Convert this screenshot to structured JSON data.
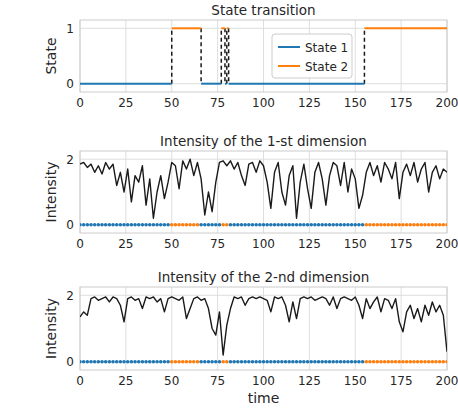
{
  "chart_data": [
    {
      "type": "step",
      "title": "State transition",
      "y_label": "State",
      "xlim": [
        0,
        200
      ],
      "ylim": [
        -0.15,
        1.15
      ],
      "xticks": [
        0,
        25,
        50,
        75,
        100,
        125,
        150,
        175,
        200
      ],
      "yticks": [
        0,
        1
      ],
      "grid": true,
      "legend": "upper right",
      "series": [
        {
          "name": "State 1",
          "color": "#1f77b4",
          "value": 0
        },
        {
          "name": "State 2",
          "color": "#ff7f0e",
          "value": 1
        }
      ],
      "segments": [
        {
          "start": 0,
          "end": 50,
          "state": 0
        },
        {
          "start": 50,
          "end": 66,
          "state": 1
        },
        {
          "start": 66,
          "end": 77,
          "state": 0
        },
        {
          "start": 77,
          "end": 79,
          "state": 1
        },
        {
          "start": 79,
          "end": 80,
          "state": 0
        },
        {
          "start": 80,
          "end": 81,
          "state": 1
        },
        {
          "start": 81,
          "end": 155,
          "state": 0
        },
        {
          "start": 155,
          "end": 200,
          "state": 1
        }
      ]
    },
    {
      "type": "line",
      "title": "Intensity of the 1-st dimension",
      "y_label": "Intensity",
      "xlim": [
        0,
        200
      ],
      "ylim": [
        -0.25,
        2.25
      ],
      "xticks": [
        0,
        25,
        50,
        75,
        100,
        125,
        150,
        175,
        200
      ],
      "yticks": [
        0,
        2
      ],
      "grid": true,
      "x": [
        0,
        2,
        4,
        6,
        8,
        10,
        12,
        14,
        16,
        18,
        20,
        22,
        24,
        26,
        28,
        30,
        32,
        34,
        36,
        38,
        40,
        42,
        44,
        46,
        48,
        50,
        52,
        54,
        56,
        58,
        60,
        62,
        64,
        66,
        68,
        70,
        72,
        74,
        76,
        78,
        80,
        82,
        84,
        86,
        88,
        90,
        92,
        94,
        96,
        98,
        100,
        102,
        104,
        106,
        108,
        110,
        112,
        114,
        116,
        118,
        120,
        122,
        124,
        126,
        128,
        130,
        132,
        134,
        136,
        138,
        140,
        142,
        144,
        146,
        148,
        150,
        152,
        154,
        156,
        158,
        160,
        162,
        164,
        166,
        168,
        170,
        172,
        174,
        176,
        178,
        180,
        182,
        184,
        186,
        188,
        190,
        192,
        194,
        196,
        198,
        200
      ],
      "series": [
        {
          "color": "#1a1a1a",
          "type": "line",
          "values": [
            1.85,
            1.9,
            1.75,
            1.85,
            1.6,
            1.8,
            1.55,
            1.9,
            1.7,
            1.85,
            1.2,
            1.6,
            1.0,
            1.7,
            0.7,
            1.5,
            1.3,
            1.8,
            0.6,
            1.4,
            0.2,
            1.0,
            1.5,
            0.8,
            1.3,
            1.9,
            1.8,
            1.1,
            1.95,
            1.7,
            2.0,
            1.5,
            1.9,
            1.4,
            0.3,
            1.0,
            0.4,
            1.3,
            1.9,
            1.95,
            1.8,
            1.95,
            1.7,
            1.9,
            1.5,
            1.2,
            1.85,
            1.9,
            1.6,
            1.95,
            1.8,
            1.3,
            0.5,
            1.6,
            1.9,
            1.0,
            0.6,
            1.5,
            1.8,
            0.2,
            1.3,
            1.85,
            1.1,
            0.5,
            1.6,
            1.9,
            1.4,
            0.6,
            1.5,
            1.9,
            1.8,
            1.2,
            1.9,
            1.0,
            1.7,
            1.4,
            0.5,
            0.9,
            1.6,
            1.9,
            1.5,
            1.8,
            1.3,
            1.9,
            1.7,
            1.4,
            1.9,
            0.8,
            1.6,
            1.85,
            1.5,
            1.9,
            1.3,
            1.7,
            1.9,
            1.0,
            1.6,
            1.8,
            1.4,
            1.7,
            1.6
          ]
        },
        {
          "color": "#1f77b4",
          "type": "scatter",
          "values": [
            0,
            0,
            0,
            0,
            0,
            0,
            0,
            0,
            0,
            0,
            0,
            0,
            0,
            0,
            0,
            0,
            0,
            0,
            0,
            0,
            0,
            0,
            0,
            0,
            0,
            null,
            null,
            null,
            null,
            null,
            null,
            null,
            null,
            0,
            0,
            0,
            0,
            0,
            0,
            null,
            null,
            0,
            0,
            0,
            0,
            0,
            0,
            0,
            0,
            0,
            0,
            0,
            0,
            0,
            0,
            0,
            0,
            0,
            0,
            0,
            0,
            0,
            0,
            0,
            0,
            0,
            0,
            0,
            0,
            0,
            0,
            0,
            0,
            0,
            0,
            0,
            0,
            0,
            null,
            null,
            null,
            null,
            null,
            null,
            null,
            null,
            null,
            null,
            null,
            null,
            null,
            null,
            null,
            null,
            null,
            null,
            null,
            null,
            null,
            null,
            null
          ]
        },
        {
          "color": "#ff7f0e",
          "type": "scatter",
          "values": [
            null,
            null,
            null,
            null,
            null,
            null,
            null,
            null,
            null,
            null,
            null,
            null,
            null,
            null,
            null,
            null,
            null,
            null,
            null,
            null,
            null,
            null,
            null,
            null,
            null,
            0,
            0,
            0,
            0,
            0,
            0,
            0,
            0,
            null,
            null,
            null,
            null,
            null,
            null,
            0,
            0,
            null,
            null,
            null,
            null,
            null,
            null,
            null,
            null,
            null,
            null,
            null,
            null,
            null,
            null,
            null,
            null,
            null,
            null,
            null,
            null,
            null,
            null,
            null,
            null,
            null,
            null,
            null,
            null,
            null,
            null,
            null,
            null,
            null,
            null,
            null,
            null,
            null,
            0,
            0,
            0,
            0,
            0,
            0,
            0,
            0,
            0,
            0,
            0,
            0,
            0,
            0,
            0,
            0,
            0,
            0,
            0,
            0,
            0,
            0,
            0
          ]
        }
      ]
    },
    {
      "type": "line",
      "title": "Intensity of the 2-nd dimension",
      "y_label": "Intensity",
      "x_label": "time",
      "xlim": [
        0,
        200
      ],
      "ylim": [
        -0.25,
        2.25
      ],
      "xticks": [
        0,
        25,
        50,
        75,
        100,
        125,
        150,
        175,
        200
      ],
      "yticks": [
        0,
        2
      ],
      "grid": true,
      "x": [
        0,
        2,
        4,
        6,
        8,
        10,
        12,
        14,
        16,
        18,
        20,
        22,
        24,
        26,
        28,
        30,
        32,
        34,
        36,
        38,
        40,
        42,
        44,
        46,
        48,
        50,
        52,
        54,
        56,
        58,
        60,
        62,
        64,
        66,
        68,
        70,
        72,
        74,
        76,
        78,
        80,
        82,
        84,
        86,
        88,
        90,
        92,
        94,
        96,
        98,
        100,
        102,
        104,
        106,
        108,
        110,
        112,
        114,
        116,
        118,
        120,
        122,
        124,
        126,
        128,
        130,
        132,
        134,
        136,
        138,
        140,
        142,
        144,
        146,
        148,
        150,
        152,
        154,
        156,
        158,
        160,
        162,
        164,
        166,
        168,
        170,
        172,
        174,
        176,
        178,
        180,
        182,
        184,
        186,
        188,
        190,
        192,
        194,
        196,
        198,
        200
      ],
      "series": [
        {
          "color": "#1a1a1a",
          "type": "line",
          "values": [
            1.35,
            1.5,
            1.4,
            1.9,
            1.95,
            1.85,
            1.9,
            1.95,
            1.8,
            1.95,
            1.9,
            1.7,
            1.2,
            1.9,
            1.95,
            1.85,
            1.9,
            1.6,
            1.95,
            1.9,
            1.95,
            1.8,
            1.9,
            1.5,
            1.9,
            1.95,
            1.9,
            1.85,
            1.95,
            1.3,
            1.6,
            1.9,
            1.95,
            1.85,
            1.9,
            1.6,
            1.0,
            0.8,
            1.5,
            0.2,
            1.1,
            1.6,
            1.95,
            1.9,
            1.95,
            1.7,
            1.9,
            1.95,
            1.9,
            1.95,
            1.9,
            1.85,
            1.5,
            1.95,
            1.9,
            1.95,
            1.7,
            1.2,
            1.8,
            1.3,
            1.9,
            1.95,
            1.9,
            1.95,
            1.85,
            1.9,
            1.95,
            1.9,
            1.7,
            1.95,
            1.6,
            1.9,
            1.95,
            1.9,
            1.85,
            1.95,
            1.7,
            1.3,
            1.9,
            1.6,
            1.8,
            1.95,
            1.5,
            1.9,
            1.85,
            1.6,
            1.9,
            1.2,
            0.9,
            1.5,
            1.7,
            1.3,
            1.6,
            1.2,
            1.7,
            1.4,
            1.8,
            1.5,
            1.7,
            1.4,
            0.3
          ]
        },
        {
          "color": "#1f77b4",
          "type": "scatter",
          "values": [
            0,
            0,
            0,
            0,
            0,
            0,
            0,
            0,
            0,
            0,
            0,
            0,
            0,
            0,
            0,
            0,
            0,
            0,
            0,
            0,
            0,
            0,
            0,
            0,
            0,
            null,
            null,
            null,
            null,
            null,
            null,
            null,
            null,
            0,
            0,
            0,
            0,
            0,
            0,
            null,
            null,
            0,
            0,
            0,
            0,
            0,
            0,
            0,
            0,
            0,
            0,
            0,
            0,
            0,
            0,
            0,
            0,
            0,
            0,
            0,
            0,
            0,
            0,
            0,
            0,
            0,
            0,
            0,
            0,
            0,
            0,
            0,
            0,
            0,
            0,
            0,
            0,
            0,
            null,
            null,
            null,
            null,
            null,
            null,
            null,
            null,
            null,
            null,
            null,
            null,
            null,
            null,
            null,
            null,
            null,
            null,
            null,
            null,
            null,
            null,
            null
          ]
        },
        {
          "color": "#ff7f0e",
          "type": "scatter",
          "values": [
            null,
            null,
            null,
            null,
            null,
            null,
            null,
            null,
            null,
            null,
            null,
            null,
            null,
            null,
            null,
            null,
            null,
            null,
            null,
            null,
            null,
            null,
            null,
            null,
            null,
            0,
            0,
            0,
            0,
            0,
            0,
            0,
            0,
            null,
            null,
            null,
            null,
            null,
            null,
            0,
            0,
            null,
            null,
            null,
            null,
            null,
            null,
            null,
            null,
            null,
            null,
            null,
            null,
            null,
            null,
            null,
            null,
            null,
            null,
            null,
            null,
            null,
            null,
            null,
            null,
            null,
            null,
            null,
            null,
            null,
            null,
            null,
            null,
            null,
            null,
            null,
            null,
            null,
            0,
            0,
            0,
            0,
            0,
            0,
            0,
            0,
            0,
            0,
            0,
            0,
            0,
            0,
            0,
            0,
            0,
            0,
            0,
            0,
            0,
            0,
            0
          ]
        }
      ]
    }
  ]
}
